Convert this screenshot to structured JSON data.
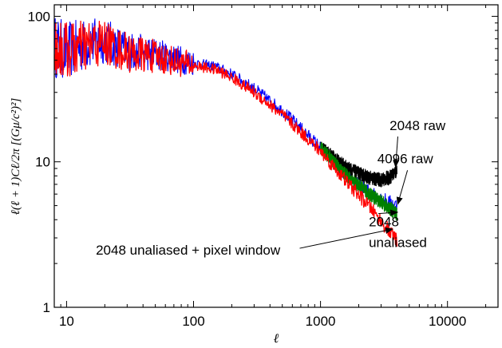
{
  "chart_data": {
    "type": "line",
    "title": "",
    "xlabel": "ℓ",
    "ylabel": "ℓ(ℓ + 1)Cℓ/2π [(Gμ/c²)²]",
    "xscale": "log",
    "yscale": "log",
    "xlim": [
      8,
      25000
    ],
    "ylim": [
      1,
      120
    ],
    "grid": false,
    "x_ticks": [
      {
        "value": 10,
        "label": "10"
      },
      {
        "value": 100,
        "label": "100"
      },
      {
        "value": 1000,
        "label": "1000"
      },
      {
        "value": 10000,
        "label": "10000"
      }
    ],
    "y_ticks": [
      {
        "value": 1,
        "label": "1"
      },
      {
        "value": 10,
        "label": "10"
      },
      {
        "value": 100,
        "label": "100"
      }
    ],
    "series": [
      {
        "color": "#0000ff",
        "x": [
          8,
          10,
          15,
          20,
          30,
          50,
          100,
          150,
          200,
          300,
          500,
          700,
          1000,
          1500,
          2000,
          3000,
          4000
        ],
        "y": [
          62,
          58,
          65,
          68,
          58,
          55,
          48,
          45,
          40,
          32,
          22.5,
          17,
          12.5,
          8.5,
          6.9,
          5.6,
          5.0
        ]
      },
      {
        "color": "#000000",
        "x": [
          1000,
          1300,
          1600,
          2000,
          2500,
          3000,
          3500,
          4000
        ],
        "y": [
          12.8,
          10.5,
          9.2,
          8.3,
          7.7,
          7.5,
          7.8,
          8.7
        ]
      },
      {
        "color": "#008000",
        "x": [
          1000,
          1500,
          2000,
          2500,
          3000,
          3500,
          4000
        ],
        "y": [
          12.5,
          8.5,
          6.8,
          5.9,
          5.3,
          4.8,
          4.4
        ]
      },
      {
        "color": "#ff0000",
        "x": [
          8,
          10,
          15,
          20,
          30,
          50,
          100,
          150,
          200,
          300,
          500,
          700,
          1000,
          1500,
          2000,
          2500,
          3000,
          3500,
          4000
        ],
        "y": [
          62,
          58,
          63,
          66,
          56,
          53,
          46,
          43,
          38,
          30,
          21,
          16,
          11.8,
          7.8,
          5.9,
          4.8,
          3.9,
          3.3,
          2.9
        ]
      }
    ],
    "annotations": [
      {
        "text": "2048 raw",
        "x": 3500,
        "y": 16.5,
        "arrow_to_x": 3900,
        "arrow_to_y": 9.2
      },
      {
        "text": "4096 raw",
        "x": 2800,
        "y": 9.8,
        "arrow_to_x": 4050,
        "arrow_to_y": 5.1
      },
      {
        "text": "2048",
        "x": 2400,
        "y": 3.6,
        "arrow_to_x": 4050,
        "arrow_to_y": 4.5
      },
      {
        "text": "unaliased",
        "x": 2400,
        "y": 2.6,
        "arrow_to_x": null,
        "arrow_to_y": null
      },
      {
        "text": "2048 unaliased + pixel window",
        "x": 17,
        "y": 2.3,
        "arrow_to_x": 3700,
        "arrow_to_y": 3.45
      }
    ]
  }
}
